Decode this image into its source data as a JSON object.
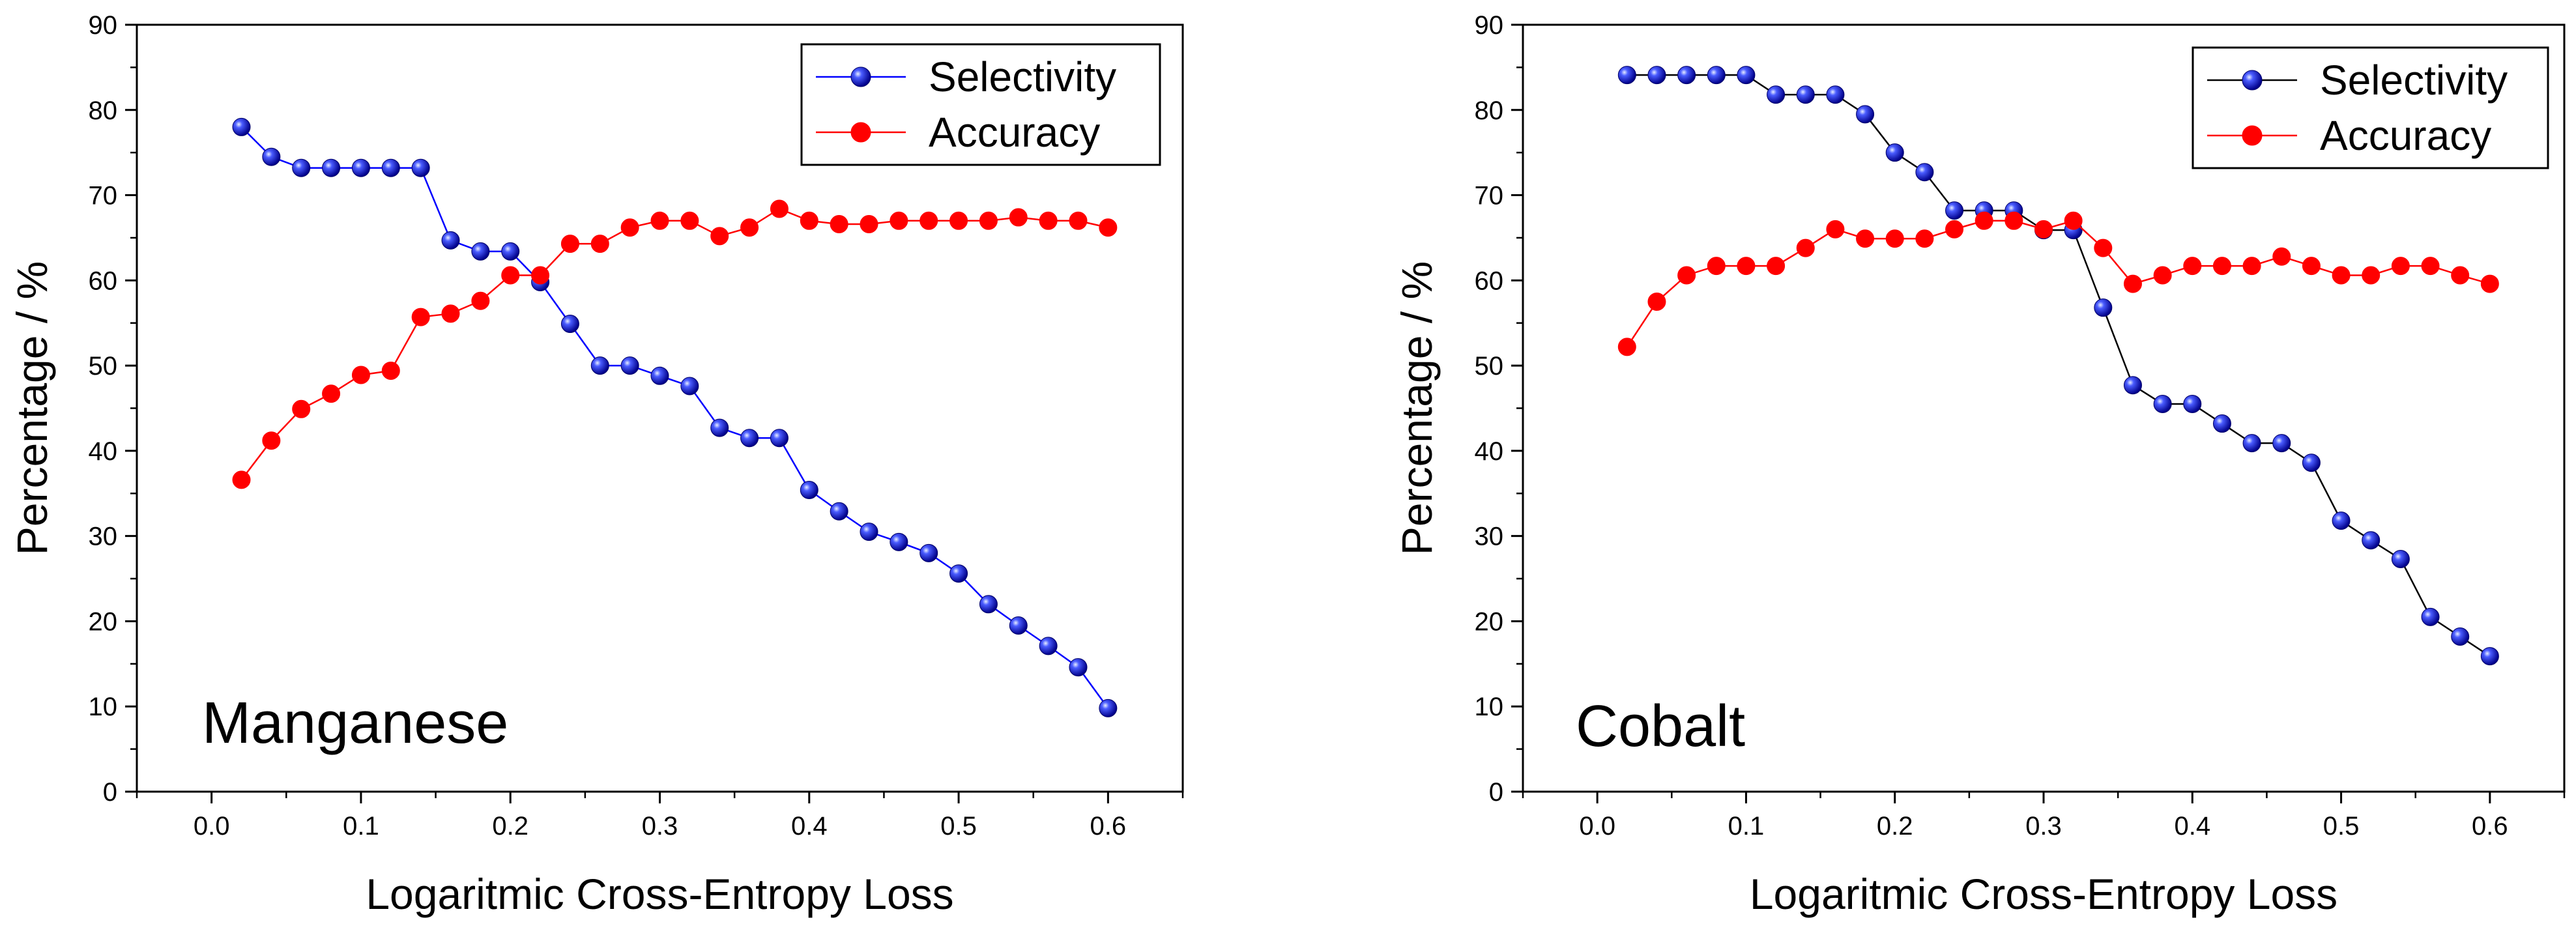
{
  "chart_data": [
    {
      "type": "line",
      "panel_label": "Manganese",
      "xlabel": "Logaritmic Cross-Entropy Loss",
      "ylabel": "Percentage / %",
      "xlim": [
        -0.05,
        0.65
      ],
      "ylim": [
        0,
        90
      ],
      "xticks": [
        0.0,
        0.1,
        0.2,
        0.3,
        0.4,
        0.5,
        0.6
      ],
      "xtick_labels": [
        "0.0",
        "0.1",
        "0.2",
        "0.3",
        "0.4",
        "0.5",
        "0.6"
      ],
      "yticks": [
        0,
        10,
        20,
        30,
        40,
        50,
        60,
        70,
        80,
        90
      ],
      "ytick_labels": [
        "0",
        "10",
        "20",
        "30",
        "40",
        "50",
        "60",
        "70",
        "80",
        "90"
      ],
      "grid": false,
      "legend_position": "top-right",
      "x": [
        0.02,
        0.04,
        0.06,
        0.08,
        0.1,
        0.12,
        0.14,
        0.16,
        0.18,
        0.2,
        0.22,
        0.24,
        0.26,
        0.28,
        0.3,
        0.32,
        0.34,
        0.36,
        0.38,
        0.4,
        0.42,
        0.44,
        0.46,
        0.48,
        0.5,
        0.52,
        0.54,
        0.56,
        0.58,
        0.6
      ],
      "series": [
        {
          "name": "Selectivity",
          "color": "#0000ff",
          "line_color": "#0000ff",
          "marker": "sphere",
          "values": [
            78.0,
            74.5,
            73.2,
            73.2,
            73.2,
            73.2,
            73.2,
            64.7,
            63.4,
            63.4,
            59.8,
            54.9,
            50.0,
            50.0,
            48.8,
            47.6,
            42.7,
            41.5,
            41.5,
            35.4,
            32.9,
            30.5,
            29.3,
            28.0,
            25.6,
            22.0,
            19.5,
            17.1,
            14.6,
            9.8
          ]
        },
        {
          "name": "Accuracy",
          "color": "#ff0000",
          "line_color": "#ff0000",
          "marker": "circle",
          "values": [
            36.6,
            41.2,
            44.9,
            46.7,
            48.9,
            49.4,
            55.7,
            56.1,
            57.6,
            60.6,
            60.6,
            64.3,
            64.3,
            66.2,
            67.0,
            67.0,
            65.2,
            66.2,
            68.4,
            67.0,
            66.6,
            66.6,
            67.0,
            67.0,
            67.0,
            67.0,
            67.4,
            67.0,
            67.0,
            66.2
          ]
        }
      ]
    },
    {
      "type": "line",
      "panel_label": "Cobalt",
      "xlabel": "Logaritmic Cross-Entropy Loss",
      "ylabel": "Percentage / %",
      "xlim": [
        -0.05,
        0.65
      ],
      "ylim": [
        0,
        90
      ],
      "xticks": [
        0.0,
        0.1,
        0.2,
        0.3,
        0.4,
        0.5,
        0.6
      ],
      "xtick_labels": [
        "0.0",
        "0.1",
        "0.2",
        "0.3",
        "0.4",
        "0.5",
        "0.6"
      ],
      "yticks": [
        0,
        10,
        20,
        30,
        40,
        50,
        60,
        70,
        80,
        90
      ],
      "ytick_labels": [
        "0",
        "10",
        "20",
        "30",
        "40",
        "50",
        "60",
        "70",
        "80",
        "90"
      ],
      "grid": false,
      "legend_position": "top-right",
      "x": [
        0.02,
        0.04,
        0.06,
        0.08,
        0.1,
        0.12,
        0.14,
        0.16,
        0.18,
        0.2,
        0.22,
        0.24,
        0.26,
        0.28,
        0.3,
        0.32,
        0.34,
        0.36,
        0.38,
        0.4,
        0.42,
        0.44,
        0.46,
        0.48,
        0.5,
        0.52,
        0.54,
        0.56,
        0.58,
        0.6
      ],
      "series": [
        {
          "name": "Selectivity",
          "color": "#0000ff",
          "line_color": "#000000",
          "marker": "sphere",
          "values": [
            84.1,
            84.1,
            84.1,
            84.1,
            84.1,
            81.8,
            81.8,
            81.8,
            79.5,
            75.0,
            72.7,
            68.2,
            68.2,
            68.2,
            65.9,
            65.9,
            56.8,
            47.7,
            45.5,
            45.5,
            43.2,
            40.9,
            40.9,
            38.6,
            31.8,
            29.5,
            27.3,
            20.5,
            18.2,
            15.9
          ]
        },
        {
          "name": "Accuracy",
          "color": "#ff0000",
          "line_color": "#ff0000",
          "marker": "circle",
          "values": [
            52.2,
            57.5,
            60.6,
            61.7,
            61.7,
            61.7,
            63.8,
            66.0,
            64.9,
            64.9,
            64.9,
            66.0,
            67.0,
            67.0,
            66.0,
            67.0,
            63.8,
            59.6,
            60.6,
            61.7,
            61.7,
            61.7,
            62.8,
            61.7,
            60.6,
            60.6,
            61.7,
            61.7,
            60.6,
            59.6
          ]
        }
      ]
    }
  ]
}
